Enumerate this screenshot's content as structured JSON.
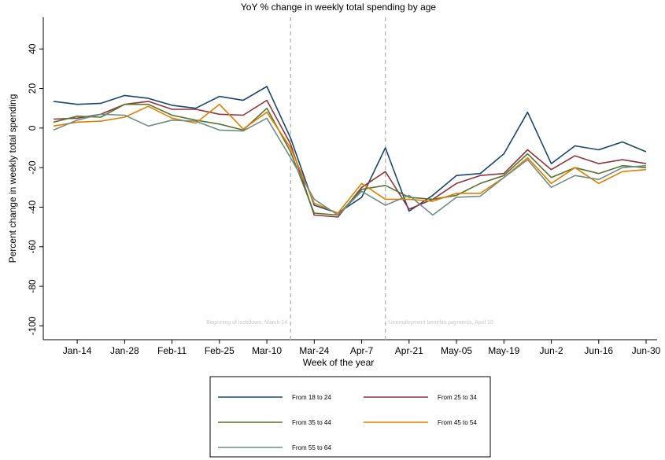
{
  "chart_data": {
    "type": "line",
    "title": "YoY % change in weekly total spending by age",
    "xlabel": "Week of the year",
    "ylabel": "Percent change in weekly total spending",
    "annotations": [
      "Beginning of lockdown, March 14",
      "Unemployment benefits payments, April 10"
    ],
    "categories": [
      null,
      "Jan-14",
      null,
      "Jan-28",
      null,
      "Feb-11",
      null,
      "Feb-25",
      null,
      "Mar-10",
      null,
      "Mar-24",
      null,
      "Apr-7",
      null,
      "Apr-21",
      null,
      "May-05",
      null,
      "May-19",
      null,
      "Jun-2",
      null,
      "Jun-16",
      null,
      "Jun-30"
    ],
    "series": [
      {
        "name": "From 18 to 24",
        "color": "#1a476f",
        "values": [
          13.5,
          12,
          12.5,
          16.5,
          15,
          11.5,
          10,
          16,
          14,
          21,
          -5,
          -39,
          -43,
          -35,
          -10,
          -42,
          -34,
          -24,
          -23,
          -13,
          8,
          -18,
          -9,
          -11,
          -7,
          -12
        ]
      },
      {
        "name": "From 25 to 34",
        "color": "#90353b",
        "values": [
          4.5,
          5,
          7,
          12,
          13.5,
          9.5,
          9.5,
          7,
          6.5,
          14,
          -8,
          -44,
          -45,
          -30,
          -22,
          -41,
          -36,
          -28,
          -24,
          -23,
          -11,
          -21,
          -14,
          -18,
          -16,
          -18
        ]
      },
      {
        "name": "From 35 to 44",
        "color": "#55752f",
        "values": [
          3,
          6,
          5.5,
          12,
          12,
          6.5,
          4,
          2,
          -1,
          10,
          -12,
          -43,
          -44,
          -31,
          -29,
          -35,
          -36,
          -34,
          -28,
          -24,
          -13,
          -25,
          -20,
          -23,
          -19,
          -20
        ]
      },
      {
        "name": "From 45 to 54",
        "color": "#e37e00",
        "values": [
          1,
          3,
          3.5,
          5.5,
          11,
          5,
          2.5,
          12,
          -0.5,
          8,
          -10,
          -38,
          -43,
          -28,
          -36,
          -36,
          -37,
          -33,
          -33,
          -25,
          -15,
          -28,
          -20,
          -28,
          -22,
          -21
        ]
      },
      {
        "name": "From 55 to 64",
        "color": "#6e8e84",
        "values": [
          -1,
          4,
          7,
          6.5,
          1,
          4,
          3.5,
          -1,
          -1.5,
          5,
          -15,
          -36,
          -44,
          -32,
          -39,
          -34,
          -44,
          -35,
          -34.5,
          -25,
          -16,
          -30,
          -24,
          -26,
          -20,
          -19
        ]
      }
    ],
    "ylim": [
      -107,
      56
    ],
    "yticks": [
      40,
      20,
      0,
      -20,
      -40,
      -60,
      -80,
      -100
    ],
    "grid": false,
    "legend": "bottom"
  }
}
